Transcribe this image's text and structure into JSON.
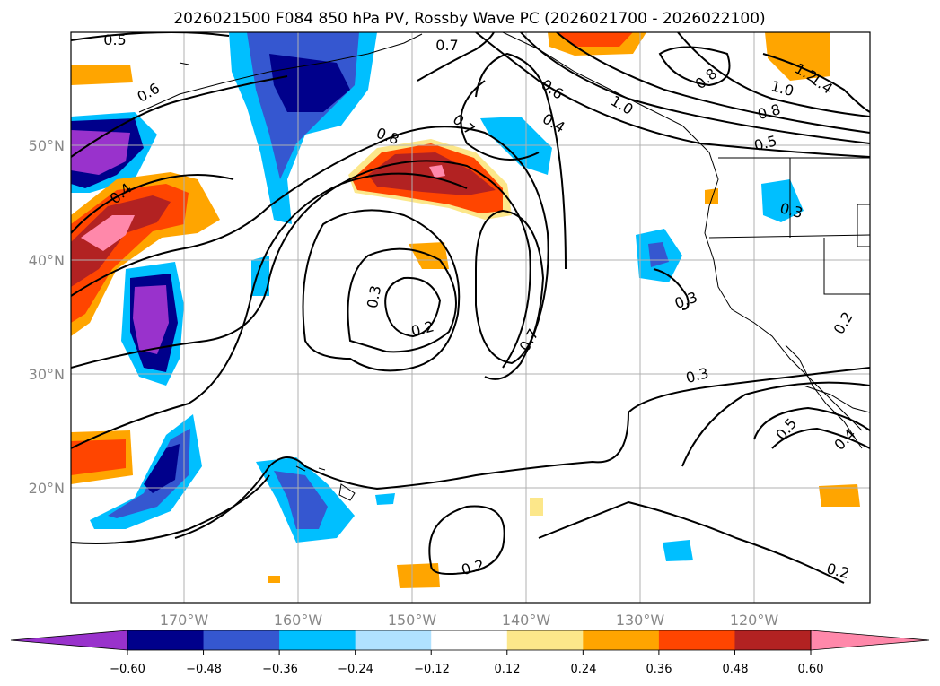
{
  "title": "2026021500 F084 850 hPa PV, Rossby Wave PC (2026021700 - 2026022100)",
  "map": {
    "lat_ticks": [
      "50°N",
      "40°N",
      "30°N",
      "20°N"
    ],
    "lon_ticks": [
      "170°W",
      "160°W",
      "150°W",
      "140°W",
      "130°W",
      "120°W"
    ],
    "grid": true
  },
  "contour_labels": [
    "0.5",
    "0.6",
    "0.4",
    "0.7",
    "0.8",
    "0.7",
    "0.6",
    "0.4",
    "1.0",
    "1.0",
    "1.2",
    "1.4",
    "0.8",
    "0.8",
    "0.5",
    "0.3",
    "0.2",
    "0.7",
    "0.3",
    "0.3",
    "0.3",
    "0.5",
    "0.4",
    "0.2",
    "0.2",
    "0.2"
  ],
  "colorbar": {
    "tick_labels": [
      "−0.60",
      "−0.48",
      "−0.36",
      "−0.24",
      "−0.12",
      "0.12",
      "0.24",
      "0.36",
      "0.48",
      "0.60"
    ],
    "colors": [
      "#9932cc",
      "#00008b",
      "#3557d0",
      "#00bfff",
      "#b0e2ff",
      "#ffffff",
      "#fce78a",
      "#ffa500",
      "#ff4500",
      "#b22222",
      "#ff88aa"
    ],
    "extend": "both"
  }
}
